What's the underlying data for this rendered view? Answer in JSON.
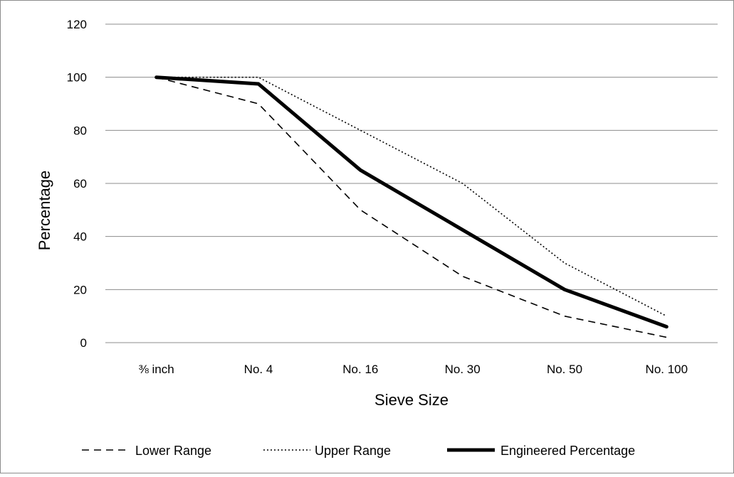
{
  "chart_data": {
    "type": "line",
    "title": "",
    "xlabel": "Sieve Size",
    "ylabel": "Percentage",
    "categories": [
      "⅜ inch",
      "No. 4",
      "No. 16",
      "No. 30",
      "No. 50",
      "No. 100"
    ],
    "ylim": [
      0,
      120
    ],
    "yticks": [
      0,
      20,
      40,
      60,
      80,
      100,
      120
    ],
    "grid": "horizontal",
    "legend_position": "bottom",
    "series": [
      {
        "name": "Lower Range",
        "values": [
          100,
          90,
          50,
          25,
          10,
          2
        ],
        "style": "dashed",
        "color": "#000000"
      },
      {
        "name": "Upper Range",
        "values": [
          100,
          100,
          80,
          60,
          30,
          10
        ],
        "style": "dotted",
        "color": "#000000"
      },
      {
        "name": "Engineered Percentage",
        "values": [
          100,
          97.5,
          65,
          42.5,
          20,
          6
        ],
        "style": "solid-thick",
        "color": "#000000"
      }
    ]
  }
}
